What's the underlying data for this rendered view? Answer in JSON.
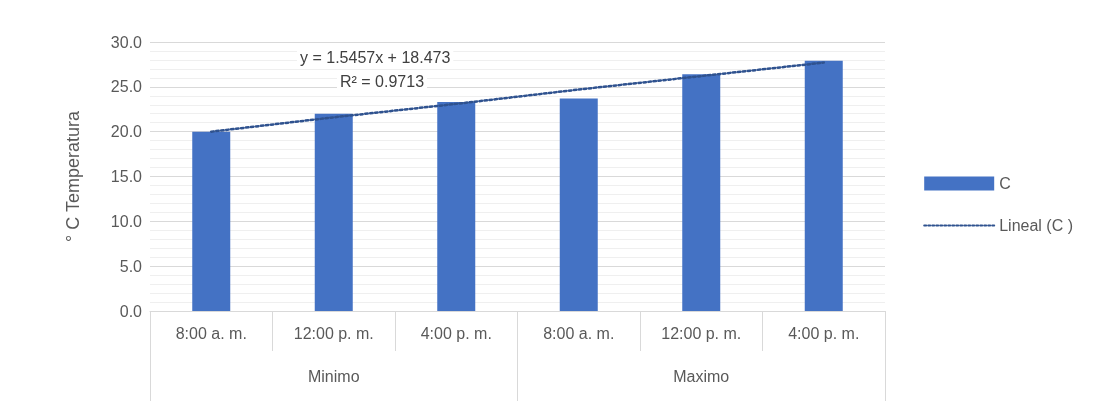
{
  "chart_data": {
    "type": "bar",
    "ylabel": "° C Temperatura",
    "categories": [
      "8:00 a. m.",
      "12:00 p. m.",
      "4:00 p. m.",
      "8:00 a. m.",
      "12:00 p. m.",
      "4:00 p. m."
    ],
    "series": [
      {
        "name": "C",
        "color": "#4472c4",
        "values": [
          20.0,
          22.0,
          23.3,
          23.7,
          26.4,
          27.9
        ]
      },
      {
        "name": "Lineal (C )",
        "type": "line",
        "color": "#2f528f",
        "line_style": "dotted",
        "marker": "none",
        "values": [
          20.0,
          21.6,
          23.1,
          24.7,
          26.2,
          27.7
        ]
      }
    ],
    "ylim": [
      0,
      30
    ],
    "yticks": [
      {
        "value": 0,
        "label": "0.0"
      },
      {
        "value": 5,
        "label": "5.0"
      },
      {
        "value": 10,
        "label": "10.0"
      },
      {
        "value": 15,
        "label": "15.0"
      },
      {
        "value": 20,
        "label": "20.0"
      },
      {
        "value": 25,
        "label": "25.0"
      },
      {
        "value": 30,
        "label": "30.0"
      }
    ],
    "grid": "y",
    "legend": "right",
    "annotations": [
      "y = 1.5457x + 18.473",
      "R² = 0.9713",
      "Minimo",
      "Maximo"
    ]
  }
}
